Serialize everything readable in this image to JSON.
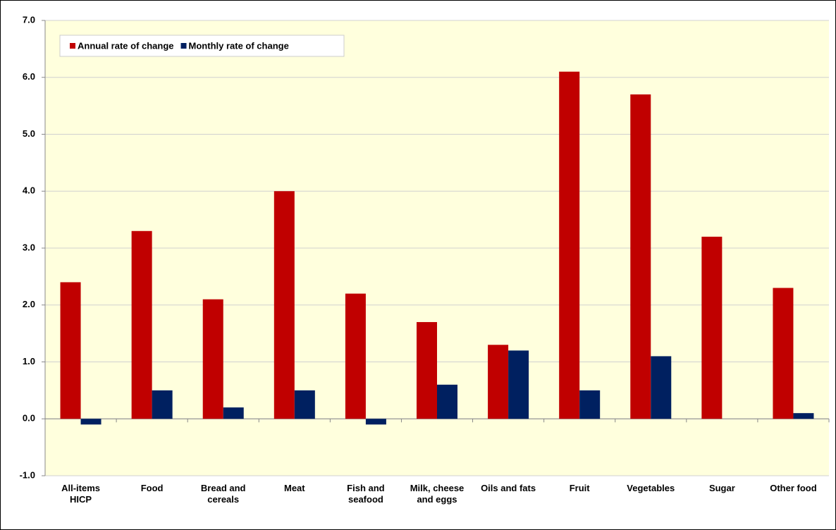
{
  "chart_data": {
    "type": "bar",
    "categories": [
      "All-items\nHICP",
      "Food",
      "Bread and\ncereals",
      "Meat",
      "Fish and\nseafood",
      "Milk, cheese\nand eggs",
      "Oils and fats",
      "Fruit",
      "Vegetables",
      "Sugar",
      "Other food"
    ],
    "series": [
      {
        "name": "Annual rate of change",
        "color": "#C00000",
        "values": [
          2.4,
          3.3,
          2.1,
          4.0,
          2.2,
          1.7,
          1.3,
          6.1,
          5.7,
          3.2,
          2.3
        ]
      },
      {
        "name": "Monthly rate of change",
        "color": "#002060",
        "values": [
          -0.1,
          0.5,
          0.2,
          0.5,
          -0.1,
          0.6,
          1.2,
          0.5,
          1.1,
          0.0,
          0.1
        ]
      }
    ],
    "ylim": [
      -1,
      7
    ],
    "yticks": [
      {
        "value": -1,
        "label": "-1.0"
      },
      {
        "value": 0,
        "label": "0.0"
      },
      {
        "value": 1,
        "label": "1.0"
      },
      {
        "value": 2,
        "label": "2.0"
      },
      {
        "value": 3,
        "label": "3.0"
      },
      {
        "value": 4,
        "label": "4.0"
      },
      {
        "value": 5,
        "label": "5.0"
      },
      {
        "value": 6,
        "label": "6.0"
      },
      {
        "value": 7,
        "label": "7.0"
      }
    ],
    "grid": true,
    "legend": "top-left"
  }
}
